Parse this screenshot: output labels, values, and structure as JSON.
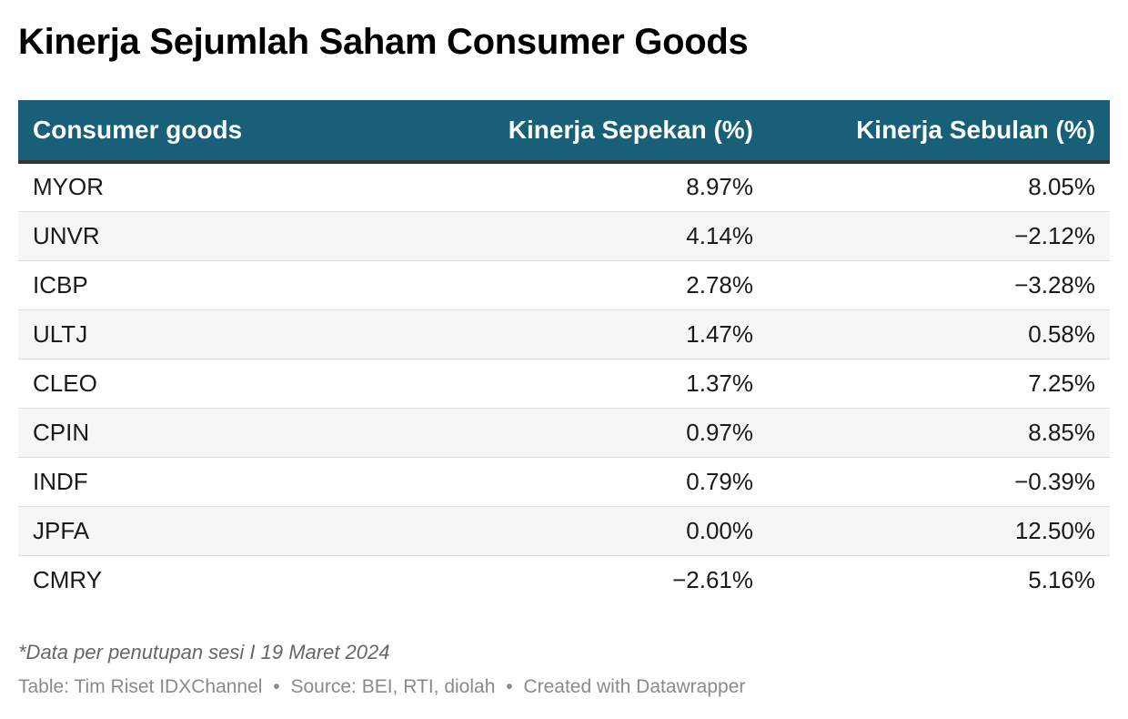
{
  "title": "Kinerja Sejumlah Saham Consumer Goods",
  "chart_data": {
    "type": "table",
    "title": "Kinerja Sejumlah Saham Consumer Goods",
    "columns": [
      "Consumer goods",
      "Kinerja Sepekan (%)",
      "Kinerja Sebulan (%)"
    ],
    "rows": [
      {
        "ticker": "MYOR",
        "week": "8.97%",
        "month": "8.05%"
      },
      {
        "ticker": "UNVR",
        "week": "4.14%",
        "month": "−2.12%"
      },
      {
        "ticker": "ICBP",
        "week": "2.78%",
        "month": "−3.28%"
      },
      {
        "ticker": "ULTJ",
        "week": "1.47%",
        "month": "0.58%"
      },
      {
        "ticker": "CLEO",
        "week": "1.37%",
        "month": "7.25%"
      },
      {
        "ticker": "CPIN",
        "week": "0.97%",
        "month": "8.85%"
      },
      {
        "ticker": "INDF",
        "week": "0.79%",
        "month": "−0.39%"
      },
      {
        "ticker": "JPFA",
        "week": "0.00%",
        "month": "12.50%"
      },
      {
        "ticker": "CMRY",
        "week": "−2.61%",
        "month": "5.16%"
      }
    ]
  },
  "colors": {
    "header_bg": "#186077",
    "header_text": "#ffffff",
    "stripe": "#f6f6f6"
  },
  "note": "*Data per penutupan sesi I 19 Maret 2024",
  "footer": {
    "table_credit": "Table: Tim Riset IDXChannel",
    "source": "Source: BEI, RTI, diolah",
    "created": "Created with Datawrapper",
    "separator": "•"
  }
}
